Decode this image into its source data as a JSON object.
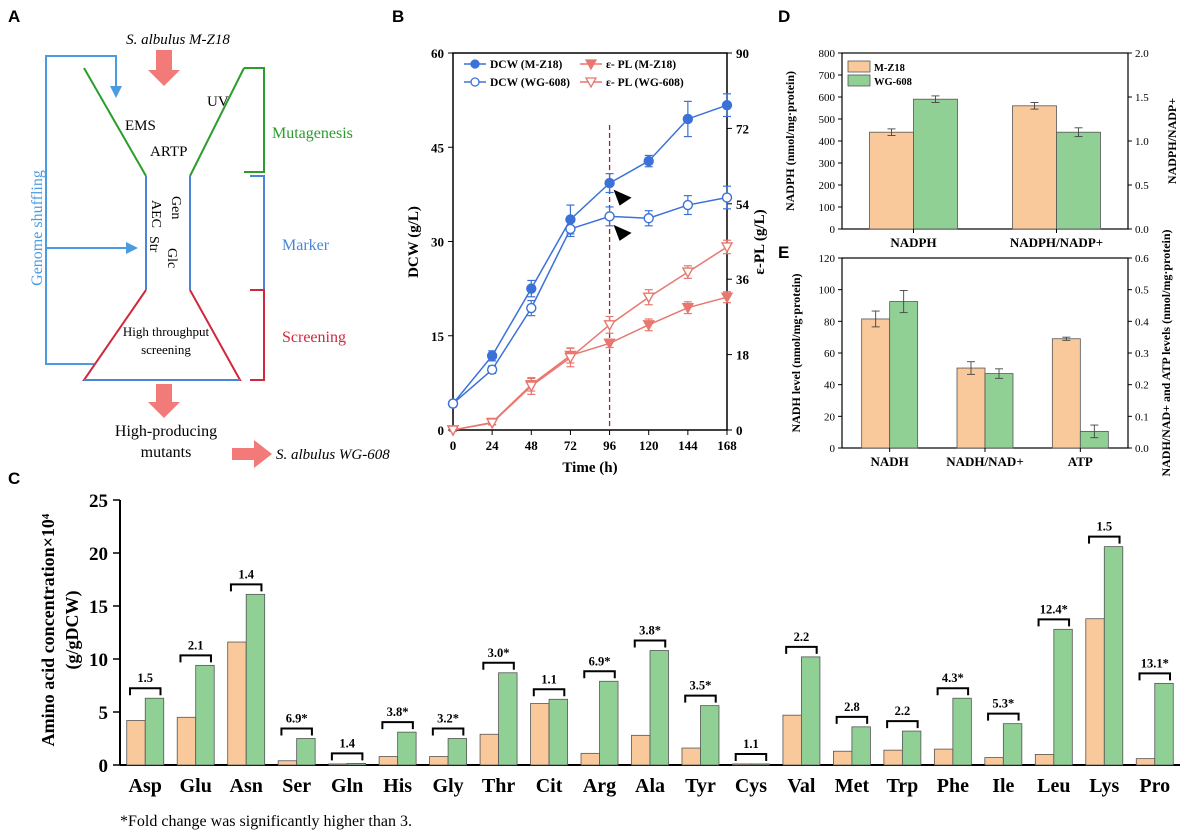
{
  "panel_labels": {
    "a": "A",
    "b": "B",
    "c": "C",
    "d": "D",
    "e": "E"
  },
  "colors": {
    "mz18_bar": "#f9c89b",
    "wg608_bar": "#90d095",
    "dcw_line": "#3b72d8",
    "pl_line": "#e8776f",
    "mutagenesis": "#2a9d2a",
    "marker": "#4a86d8",
    "screening": "#d0283c",
    "shuffle": "#4a9be0",
    "arrow": "#f27a78",
    "dashed": "#a02040"
  },
  "diagram": {
    "top_strain": "S. albulus M-Z18",
    "uv": "UV",
    "ems": "EMS",
    "artp": "ARTP",
    "mutagenesis": "Mutagenesis",
    "gen": "Gen",
    "aec": "AEC",
    "str": "Str",
    "glc": "Glc",
    "marker": "Marker",
    "genome_shuffling": "Genome shuffling",
    "hts_line1": "High throughput",
    "hts_line2": "screening",
    "screening": "Screening",
    "result_line1": "High-producing",
    "result_line2": "mutants",
    "final_strain": "S. albulus WG-608"
  },
  "chart_data": [
    {
      "id": "B",
      "type": "line",
      "x": [
        0,
        24,
        48,
        72,
        96,
        120,
        144,
        168
      ],
      "xlabel": "Time (h)",
      "ylabel": "DCW (g/L)",
      "y2label": "ε-PL (g/L)",
      "xticks": [
        "0",
        "24",
        "48",
        "72",
        "96",
        "120",
        "144",
        "168"
      ],
      "yticks": [
        "0",
        "15",
        "30",
        "45",
        "60"
      ],
      "y2ticks": [
        "0",
        "18",
        "36",
        "54",
        "72",
        "90"
      ],
      "ylim": [
        0,
        60
      ],
      "y2lim": [
        0,
        90
      ],
      "marker_line_x": 96,
      "series": [
        {
          "name": "DCW (M-Z18)",
          "axis": "left",
          "marker": "filled-circle",
          "values": [
            4.2,
            11.8,
            22.5,
            33.5,
            39.3,
            42.8,
            49.5,
            51.7
          ],
          "errors": [
            0.5,
            0.8,
            1.3,
            2.3,
            1.5,
            0.9,
            2.8,
            1.8
          ]
        },
        {
          "name": "DCW (WG-608)",
          "axis": "left",
          "marker": "open-circle",
          "values": [
            4.2,
            9.6,
            19.4,
            32.0,
            34.0,
            33.7,
            35.8,
            37.0
          ],
          "errors": [
            0.5,
            0.6,
            1.2,
            1.2,
            1.5,
            1.2,
            1.5,
            1.8
          ]
        },
        {
          "name": "ε- PL (M-Z18)",
          "axis": "right",
          "marker": "filled-triangle-down",
          "values": [
            0,
            1.8,
            10.8,
            17.8,
            20.7,
            25.1,
            29.2,
            31.7
          ],
          "errors": [
            0.3,
            0.5,
            1.5,
            1.8,
            1.0,
            1.4,
            1.4,
            1.3
          ]
        },
        {
          "name": "ε- PL (WG-608)",
          "axis": "right",
          "marker": "open-triangle-down",
          "values": [
            0,
            1.7,
            10.5,
            17.3,
            25.1,
            31.7,
            37.7,
            43.7
          ],
          "errors": [
            0.3,
            0.5,
            2.0,
            2.2,
            2.0,
            1.8,
            1.5,
            1.6
          ]
        }
      ],
      "legend_position": "top-left"
    },
    {
      "id": "D",
      "type": "bar",
      "categories": [
        "NADPH",
        "NADPH/NADP+"
      ],
      "ylabel": "NADPH (nmol/mg·protein)",
      "y2label": "NADPH/NADP+",
      "yticks": [
        "0",
        "100",
        "200",
        "300",
        "400",
        "500",
        "600",
        "700",
        "800"
      ],
      "y2ticks": [
        "0.0",
        "0.5",
        "1.0",
        "1.5",
        "2.0"
      ],
      "ylim": [
        0,
        800
      ],
      "y2lim": [
        0,
        2.0
      ],
      "series": [
        {
          "name": "M-Z18",
          "values": [
            440,
            560
          ],
          "errors": [
            15,
            15
          ]
        },
        {
          "name": "WG-608",
          "values": [
            590,
            440
          ],
          "errors": [
            15,
            20
          ]
        }
      ],
      "legend_position": "top-left"
    },
    {
      "id": "E",
      "type": "bar",
      "categories": [
        "NADH",
        "NADH/NAD+",
        "ATP"
      ],
      "ylabel": "NADH level (nmol/mg·protein)",
      "y2label": "NADH/NAD+ and ATP levels (nmol/mg·protein)",
      "yticks": [
        "0",
        "20",
        "40",
        "60",
        "80",
        "100",
        "120"
      ],
      "y2ticks": [
        "0.0",
        "0.1",
        "0.2",
        "0.3",
        "0.4",
        "0.5",
        "0.6"
      ],
      "ylim": [
        0,
        120
      ],
      "y2lim": [
        0,
        0.6
      ],
      "series": [
        {
          "name": "M-Z18",
          "values": [
            81.5,
            50.5,
            69
          ],
          "errors": [
            5,
            4,
            1
          ]
        },
        {
          "name": "WG-608",
          "values": [
            92.5,
            47,
            10.5
          ],
          "errors": [
            7,
            3,
            4
          ]
        }
      ]
    },
    {
      "id": "C",
      "type": "bar",
      "ylabel_line1": "Amino acid concentration×10⁴",
      "ylabel_line2": "(g/gDCW)",
      "yticks": [
        "0",
        "5",
        "10",
        "15",
        "20",
        "25"
      ],
      "ylim": [
        0,
        25
      ],
      "categories": [
        "Asp",
        "Glu",
        "Asn",
        "Ser",
        "Gln",
        "His",
        "Gly",
        "Thr",
        "Cit",
        "Arg",
        "Ala",
        "Tyr",
        "Cys",
        "Val",
        "Met",
        "Trp",
        "Phe",
        "Ile",
        "Leu",
        "Lys",
        "Pro"
      ],
      "series": [
        {
          "name": "M-Z18",
          "values": [
            4.2,
            4.5,
            11.6,
            0.4,
            0.1,
            0.8,
            0.8,
            2.9,
            5.8,
            1.1,
            2.8,
            1.6,
            0.1,
            4.7,
            1.3,
            1.4,
            1.5,
            0.7,
            1.0,
            13.8,
            0.6
          ]
        },
        {
          "name": "WG-608",
          "values": [
            6.3,
            9.4,
            16.1,
            2.5,
            0.15,
            3.1,
            2.5,
            8.7,
            6.2,
            7.9,
            10.8,
            5.6,
            0.1,
            10.2,
            3.6,
            3.2,
            6.3,
            3.9,
            12.8,
            20.6,
            7.7
          ]
        }
      ],
      "fold_labels": [
        "1.5",
        "2.1",
        "1.4",
        "6.9*",
        "1.4",
        "3.8*",
        "3.2*",
        "3.0*",
        "1.1",
        "6.9*",
        "3.8*",
        "3.5*",
        "1.1",
        "2.2",
        "2.8",
        "2.2",
        "4.3*",
        "5.3*",
        "12.4*",
        "1.5",
        "13.1*"
      ],
      "footnote": "*Fold change was significantly higher than 3."
    }
  ]
}
